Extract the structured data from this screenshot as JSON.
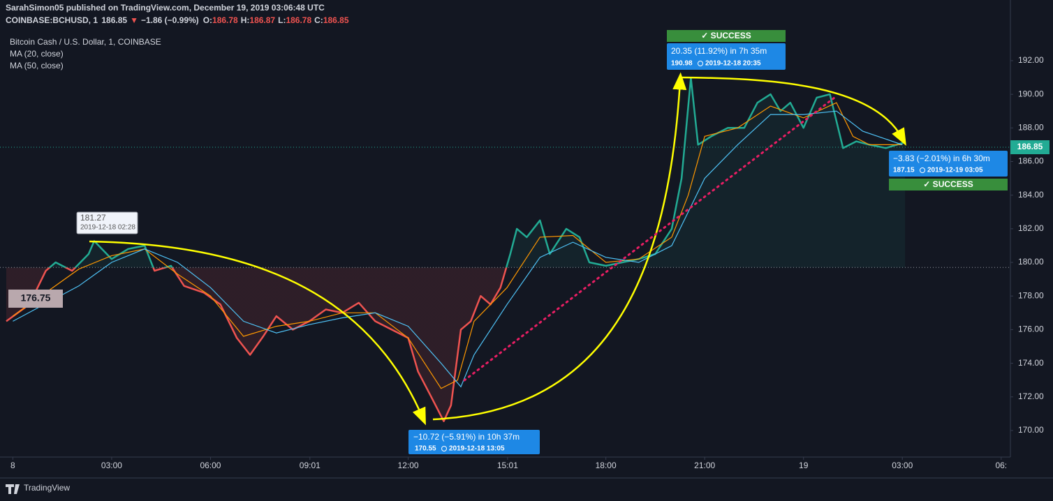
{
  "chart_data": {
    "type": "line",
    "header": {
      "publisher": "SarahSimon05 published on TradingView.com, December 19, 2019 03:06:48 UTC",
      "symbol": "COINBASE:BCHUSD, 1",
      "last": "186.85",
      "arrow": "▼",
      "change": "−1.86 (−0.99%)",
      "ohlc": [
        {
          "label": "O:",
          "value": "186.78"
        },
        {
          "label": "H:",
          "value": "186.87"
        },
        {
          "label": "L:",
          "value": "186.78"
        },
        {
          "label": "C:",
          "value": "186.85"
        }
      ]
    },
    "baseline": 179.7,
    "current_price": 186.85,
    "current_price_label": "186.85",
    "start_price_label": "176.75",
    "series": [
      {
        "name": "Bitcoin Cash / U.S. Dollar, 1, COINBASE",
        "color": "#22ab94",
        "color_below": "#ef5350",
        "x": [
          -0.2,
          0.5,
          1.0,
          1.3,
          1.8,
          2.3,
          2.47,
          3.0,
          3.5,
          4.0,
          4.3,
          4.8,
          5.2,
          5.8,
          6.3,
          6.8,
          7.2,
          7.6,
          8.0,
          8.5,
          9.0,
          9.5,
          10.0,
          10.5,
          11.0,
          11.5,
          12.0,
          12.3,
          12.7,
          13.08,
          13.3,
          13.6,
          13.9,
          14.2,
          14.5,
          14.8,
          15.1,
          15.3,
          15.6,
          16.0,
          16.3,
          16.8,
          17.2,
          17.5,
          18.0,
          18.5,
          19.0,
          19.5,
          20.0,
          20.3,
          20.58,
          20.8,
          21.2,
          21.7,
          22.2,
          22.6,
          23.0,
          23.3,
          23.6,
          24.0,
          24.4,
          24.8,
          25.2,
          25.6,
          26.0,
          26.5,
          27.08
        ],
        "values": [
          176.5,
          177.5,
          179.5,
          180,
          179.5,
          180.5,
          181.27,
          180.2,
          180.8,
          181,
          179.5,
          179.8,
          178.6,
          178.2,
          177.5,
          175.5,
          174.5,
          175.6,
          176.8,
          176,
          176.5,
          177.2,
          177,
          177.6,
          176.5,
          176,
          175.5,
          173.5,
          172,
          170.55,
          171.5,
          176,
          176.5,
          178,
          177.5,
          178.5,
          180.5,
          182,
          181.5,
          182.5,
          180.5,
          182,
          181.5,
          180,
          179.8,
          180,
          180.2,
          180.5,
          182,
          185,
          190.98,
          187,
          187.5,
          188,
          188,
          189.5,
          190,
          189,
          189.5,
          188,
          189.8,
          190,
          186.8,
          187.2,
          187,
          186.8,
          187.15
        ]
      },
      {
        "name": "MA (20, close)",
        "color": "#ff9800",
        "x": [
          0,
          2,
          3,
          4,
          5,
          6,
          7,
          8,
          9,
          10,
          11,
          12,
          13,
          13.5,
          14,
          15,
          16,
          17,
          18,
          19,
          20,
          20.5,
          21,
          22,
          23,
          24,
          25,
          25.5,
          26,
          27
        ],
        "values": [
          176.8,
          179.6,
          180.4,
          180.8,
          179.3,
          178,
          175.6,
          176.2,
          176.5,
          177,
          177,
          175.5,
          172.5,
          173,
          176.5,
          178.5,
          181.5,
          181.6,
          180,
          180.2,
          181.5,
          184,
          187.5,
          188,
          189.3,
          188.6,
          189.5,
          187.5,
          187,
          187
        ]
      },
      {
        "name": "MA (50, close)",
        "color": "#4fc3f7",
        "x": [
          0,
          2,
          3,
          4,
          5,
          6,
          7,
          8,
          9,
          10,
          11,
          12,
          13,
          13.6,
          14,
          15,
          16,
          17,
          18,
          19,
          20,
          21,
          22,
          23,
          24,
          25,
          25.8,
          27
        ],
        "values": [
          176.5,
          178.6,
          180,
          180.8,
          180,
          178.5,
          176.5,
          175.8,
          176.3,
          176.7,
          177,
          176.2,
          174,
          172.6,
          174.5,
          177.5,
          180.3,
          181.2,
          180.3,
          180,
          181,
          185,
          187,
          188.8,
          188.8,
          189,
          187.8,
          187
        ]
      }
    ],
    "annotations": [
      {
        "badge": "✓ SUCCESS",
        "text": "20.35 (11.92%) in 7h 35m",
        "price": "190.98",
        "time": "2019-12-18  20:35"
      },
      {
        "badge": "✓ SUCCESS",
        "text": "−3.83 (−2.01%) in 6h 30m",
        "price": "187.15",
        "time": "2019-12-19  03:05"
      },
      {
        "text": "−10.72 (−5.91%) in 10h 37m",
        "price": "170.55",
        "time": "2019-12-18  13:05"
      },
      {
        "price": "181.27",
        "time": "2019-12-18 02:28"
      }
    ],
    "logo": "TradingView",
    "xlim": [
      -0.39,
      30.28
    ],
    "ylim": [
      168.42,
      195.61
    ],
    "xticks": [
      {
        "value": 0,
        "label": "8"
      },
      {
        "value": 3,
        "label": "03:00"
      },
      {
        "value": 6,
        "label": "06:00"
      },
      {
        "value": 9.0167,
        "label": "09:01"
      },
      {
        "value": 12,
        "label": "12:00"
      },
      {
        "value": 15.0167,
        "label": "15:01"
      },
      {
        "value": 18,
        "label": "18:00"
      },
      {
        "value": 21,
        "label": "21:00"
      },
      {
        "value": 24,
        "label": "19"
      },
      {
        "value": 27,
        "label": "03:00"
      },
      {
        "value": 30,
        "label": "06:"
      }
    ],
    "yticks": [
      {
        "value": 170,
        "label": "170.00"
      },
      {
        "value": 172,
        "label": "172.00"
      },
      {
        "value": 174,
        "label": "174.00"
      },
      {
        "value": 176,
        "label": "176.00"
      },
      {
        "value": 178,
        "label": "178.00"
      },
      {
        "value": 180,
        "label": "180.00"
      },
      {
        "value": 182,
        "label": "182.00"
      },
      {
        "value": 184,
        "label": "184.00"
      },
      {
        "value": 186,
        "label": "186.00"
      },
      {
        "value": 188,
        "label": "188.00"
      },
      {
        "value": 190,
        "label": "190.00"
      },
      {
        "value": 192,
        "label": "192.00"
      }
    ],
    "grid": false
  }
}
